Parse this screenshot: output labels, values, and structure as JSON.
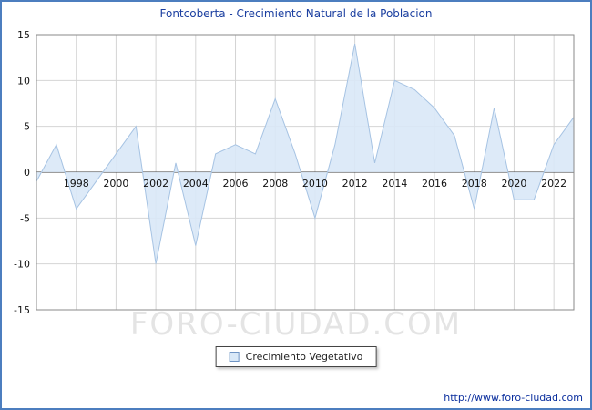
{
  "title": "Fontcoberta - Crecimiento Natural de la Poblacion",
  "legend": {
    "label": "Crecimiento Vegetativo"
  },
  "watermark": "FORO-CIUDAD.COM",
  "footer_url": "http://www.foro-ciudad.com",
  "colors": {
    "frame": "#4c7ebf",
    "title_text": "#1b3fa0",
    "area_fill": "#d9e8f7",
    "line": "#a6c3e3",
    "grid": "#d4d4d4",
    "zero_line": "#3a3a3a",
    "plot_border": "#8a8a8a",
    "tick_text": "#111111",
    "watermark_text": "#e4e4e4",
    "url_text": "#0b2f9e"
  },
  "chart_data": {
    "type": "area",
    "title": "Fontcoberta - Crecimiento Natural de la Poblacion",
    "series_name": "Crecimiento Vegetativo",
    "x": [
      1996,
      1997,
      1998,
      1999,
      2000,
      2001,
      2002,
      2003,
      2004,
      2005,
      2006,
      2007,
      2008,
      2009,
      2010,
      2011,
      2012,
      2013,
      2014,
      2015,
      2016,
      2017,
      2018,
      2019,
      2020,
      2021,
      2022,
      2023
    ],
    "values": [
      -1,
      3,
      -4,
      -1,
      2,
      5,
      -10,
      1,
      -8,
      2,
      3,
      2,
      8,
      2,
      -5,
      3,
      14,
      1,
      10,
      9,
      7,
      4,
      -4,
      7,
      -3,
      -3,
      3,
      6
    ],
    "xticks": [
      1998,
      2000,
      2002,
      2004,
      2006,
      2008,
      2010,
      2012,
      2014,
      2016,
      2018,
      2020,
      2022
    ],
    "yticks": [
      15,
      10,
      5,
      0,
      -5,
      -10,
      -15
    ],
    "xlim": [
      1996,
      2023
    ],
    "ylim": [
      -15,
      15
    ],
    "xlabel": "",
    "ylabel": "",
    "grid": true,
    "legend_position": "bottom"
  }
}
